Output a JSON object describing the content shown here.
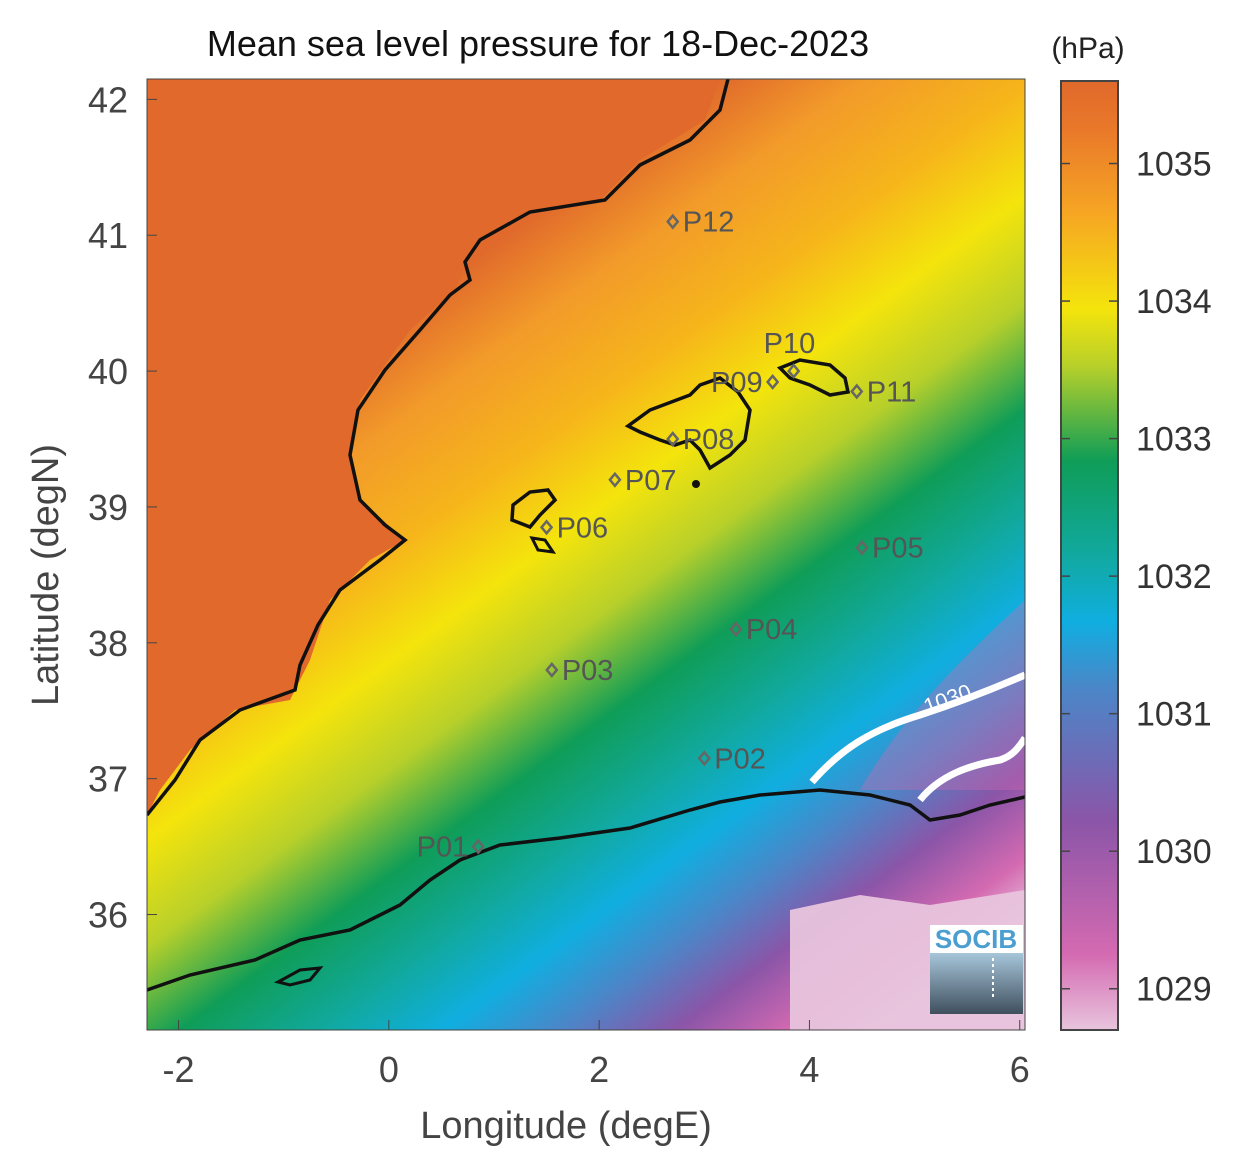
{
  "title": "Mean sea level pressure for 18-Dec-2023",
  "xlabel": "Longitude (degE)",
  "ylabel": "Latitude (degN)",
  "unit": "(hPa)",
  "x_ticks": [
    "-2",
    "0",
    "2",
    "4",
    "6"
  ],
  "y_ticks": [
    "42",
    "41",
    "40",
    "39",
    "38",
    "37",
    "36"
  ],
  "colorbar_ticks": [
    "1035",
    "1034",
    "1033",
    "1032",
    "1031",
    "1030",
    "1029"
  ],
  "isobar_label": "1030",
  "logo": "SOCIB",
  "chart_data": {
    "type": "heatmap",
    "title": "Mean sea level pressure for 18-Dec-2023",
    "xlabel": "Longitude (degE)",
    "ylabel": "Latitude (degN)",
    "xlim": [
      -2.3,
      6.05
    ],
    "ylim": [
      35.15,
      42.15
    ],
    "colorbar": {
      "label": "(hPa)",
      "range": [
        1028.7,
        1035.6
      ],
      "ticks": [
        1029,
        1030,
        1031,
        1032,
        1033,
        1034,
        1035
      ]
    },
    "colormap": [
      "#e8c4dd",
      "#d46ab1",
      "#8b55a8",
      "#4b86c8",
      "#10aee0",
      "#11a9a0",
      "#0f9d57",
      "#b8d02a",
      "#f4e40c",
      "#f6a623",
      "#e0692b"
    ],
    "contours": [
      {
        "level": 1030,
        "label": "1030",
        "color": "#ffffff"
      }
    ],
    "points": [
      {
        "name": "P01",
        "lon": 0.85,
        "lat": 36.5
      },
      {
        "name": "P02",
        "lon": 3.0,
        "lat": 37.15
      },
      {
        "name": "P03",
        "lon": 1.55,
        "lat": 37.8
      },
      {
        "name": "P04",
        "lon": 3.3,
        "lat": 38.1
      },
      {
        "name": "P05",
        "lon": 4.5,
        "lat": 38.7
      },
      {
        "name": "P06",
        "lon": 1.5,
        "lat": 38.85
      },
      {
        "name": "P07",
        "lon": 2.15,
        "lat": 39.2
      },
      {
        "name": "P08",
        "lon": 2.7,
        "lat": 39.5
      },
      {
        "name": "P09",
        "lon": 3.65,
        "lat": 39.92
      },
      {
        "name": "P10",
        "lon": 3.85,
        "lat": 40.0
      },
      {
        "name": "P11",
        "lon": 4.45,
        "lat": 39.85
      },
      {
        "name": "P12",
        "lon": 2.7,
        "lat": 41.1
      }
    ]
  }
}
